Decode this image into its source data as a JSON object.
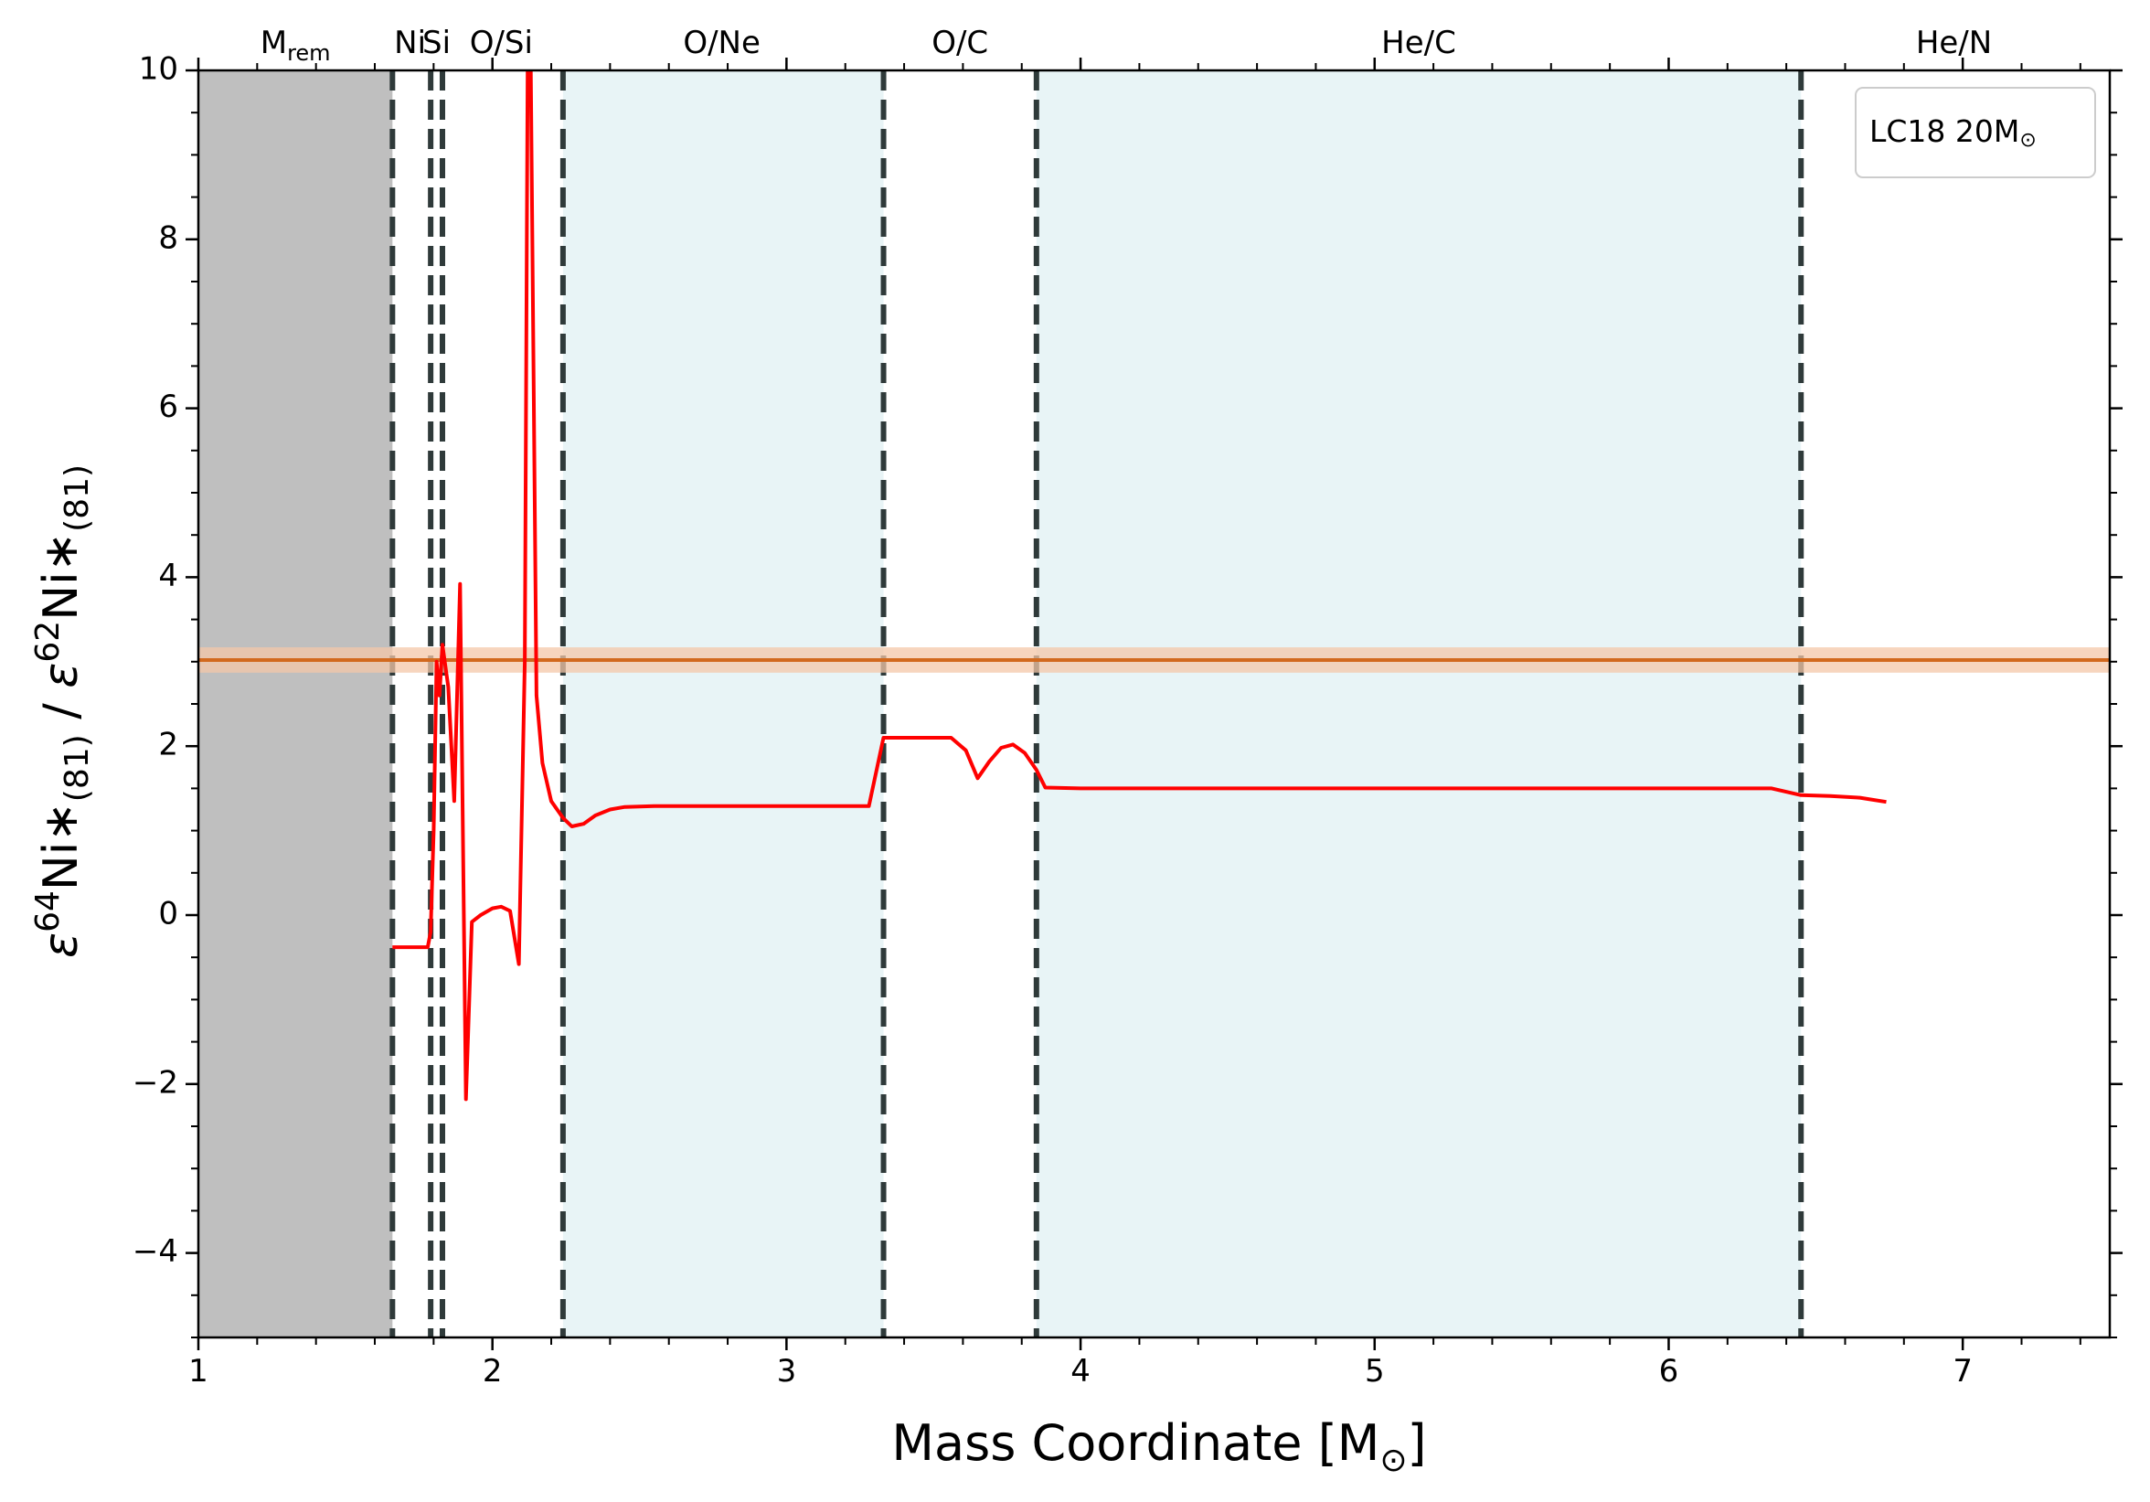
{
  "chart_data": {
    "type": "line",
    "title": "",
    "xlabel": "Mass Coordinate [M",
    "xlabel_suffix": "]",
    "ylabel_parts": {
      "eps1": "ε",
      "sup1": "64",
      "ni1": "Ni∗",
      "sub1": "(81)",
      "slash": " / ",
      "eps2": "ε",
      "sup2": "62",
      "ni2": "Ni∗",
      "sub2": "(81)"
    },
    "xlim": [
      1.0,
      7.5
    ],
    "ylim": [
      -5,
      10
    ],
    "xticks": [
      {
        "v": 1,
        "label": "1"
      },
      {
        "v": 2,
        "label": "2"
      },
      {
        "v": 3,
        "label": "3"
      },
      {
        "v": 4,
        "label": "4"
      },
      {
        "v": 5,
        "label": "5"
      },
      {
        "v": 6,
        "label": "6"
      },
      {
        "v": 7,
        "label": "7"
      }
    ],
    "yticks": [
      {
        "v": -4,
        "label": "−4"
      },
      {
        "v": -2,
        "label": "−2"
      },
      {
        "v": 0,
        "label": "0"
      },
      {
        "v": 2,
        "label": "2"
      },
      {
        "v": 4,
        "label": "4"
      },
      {
        "v": 6,
        "label": "6"
      },
      {
        "v": 8,
        "label": "8"
      },
      {
        "v": 10,
        "label": "10"
      }
    ],
    "remnant_band": {
      "x0": 1.0,
      "x1": 1.66,
      "color": "#bfbfbf"
    },
    "zone_boundaries": [
      1.66,
      1.79,
      1.83,
      2.24,
      3.33,
      3.85,
      6.45
    ],
    "shaded_zones": [
      {
        "x0": 2.24,
        "x1": 3.33,
        "color": "#e8f4f6"
      },
      {
        "x0": 3.85,
        "x1": 6.45,
        "color": "#e8f4f6"
      }
    ],
    "zone_labels": [
      {
        "x": 1.33,
        "text": "M",
        "sub": "rem"
      },
      {
        "x": 1.72,
        "text": "Ni"
      },
      {
        "x": 1.81,
        "text": "Si"
      },
      {
        "x": 2.03,
        "text": "O/Si"
      },
      {
        "x": 2.78,
        "text": "O/Ne"
      },
      {
        "x": 3.59,
        "text": "O/C"
      },
      {
        "x": 5.15,
        "text": "He/C"
      },
      {
        "x": 6.97,
        "text": "He/N"
      }
    ],
    "reference": {
      "y": 3.02,
      "y_low": 2.87,
      "y_high": 3.17,
      "color": "#d2691e",
      "band_color": "#f4c7a8"
    },
    "legend": {
      "label": "LC18 20M",
      "position": "top-right"
    },
    "series": [
      {
        "color": "#ff0000",
        "x": [
          1.66,
          1.7,
          1.74,
          1.78,
          1.79,
          1.8,
          1.81,
          1.82,
          1.83,
          1.85,
          1.87,
          1.89,
          1.91,
          1.93,
          1.96,
          2.0,
          2.03,
          2.06,
          2.09,
          2.11,
          2.12,
          2.13,
          2.15,
          2.17,
          2.2,
          2.24,
          2.27,
          2.31,
          2.35,
          2.4,
          2.45,
          2.55,
          2.7,
          2.9,
          3.1,
          3.28,
          3.33,
          3.4,
          3.5,
          3.56,
          3.61,
          3.65,
          3.69,
          3.73,
          3.77,
          3.81,
          3.85,
          3.88,
          4.0,
          5.0,
          6.0,
          6.35,
          6.45,
          6.55,
          6.65,
          6.74
        ],
        "y": [
          -0.38,
          -0.38,
          -0.38,
          -0.38,
          -0.2,
          1.0,
          3.0,
          2.6,
          3.2,
          2.7,
          1.35,
          3.92,
          -2.18,
          -0.08,
          0.0,
          0.08,
          0.1,
          0.05,
          -0.58,
          3.0,
          10.2,
          10.2,
          2.6,
          1.8,
          1.35,
          1.15,
          1.05,
          1.08,
          1.18,
          1.25,
          1.28,
          1.29,
          1.29,
          1.29,
          1.29,
          1.29,
          2.1,
          2.1,
          2.1,
          2.1,
          1.95,
          1.62,
          1.82,
          1.98,
          2.02,
          1.92,
          1.72,
          1.51,
          1.5,
          1.5,
          1.5,
          1.5,
          1.42,
          1.41,
          1.39,
          1.34
        ]
      }
    ]
  }
}
